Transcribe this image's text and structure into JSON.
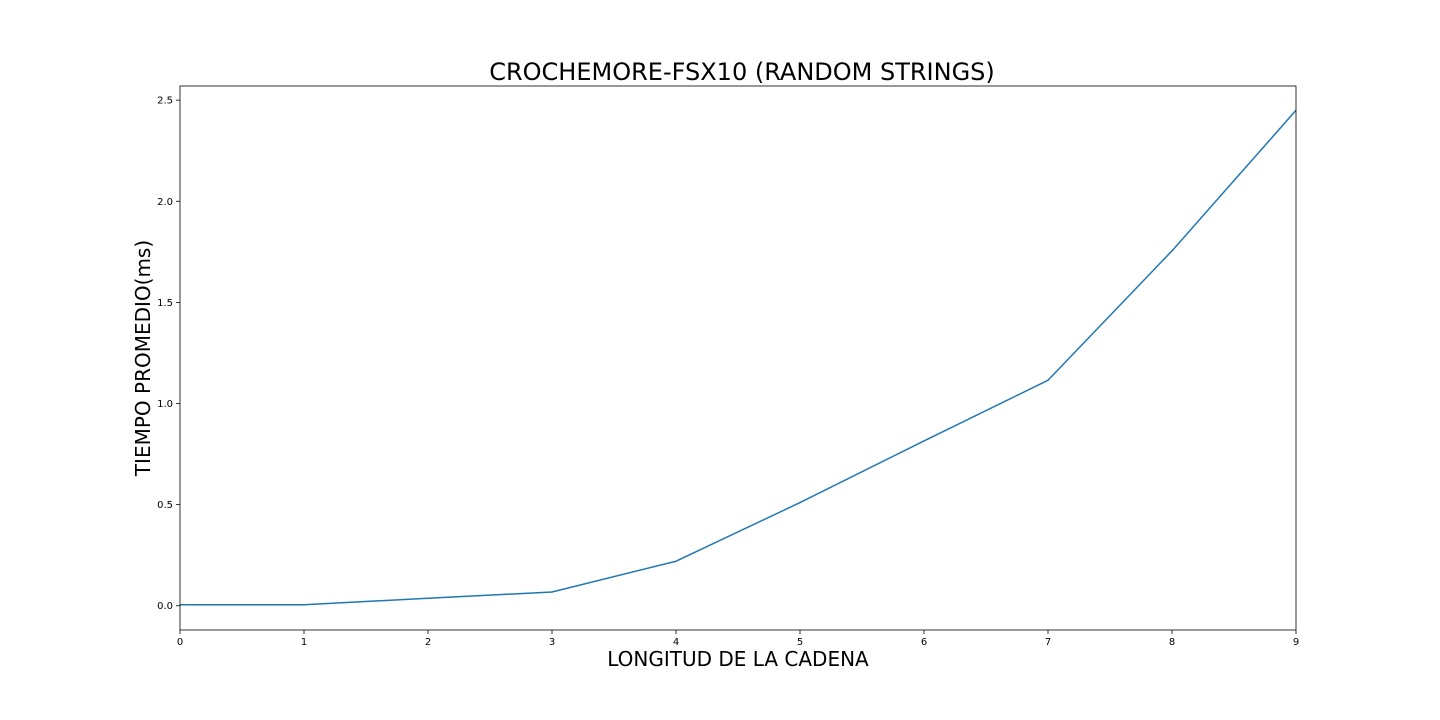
{
  "chart_data": {
    "type": "line",
    "title": "CROCHEMORE-FSX10 (RANDOM STRINGS)",
    "xlabel": "LONGITUD DE LA CADENA",
    "ylabel": "TIEMPO PROMEDIO(ms)",
    "xlim": [
      0,
      9
    ],
    "ylim": [
      -0.12,
      2.57
    ],
    "xticks": [
      0,
      1,
      2,
      3,
      4,
      5,
      6,
      7,
      8,
      9
    ],
    "xtick_labels": [
      "0",
      "1",
      "2",
      "3",
      "4",
      "5",
      "6",
      "7",
      "8",
      "9"
    ],
    "yticks": [
      0.0,
      0.5,
      1.0,
      1.5,
      2.0,
      2.5
    ],
    "ytick_labels": [
      "0.0",
      "0.5",
      "1.0",
      "1.5",
      "2.0",
      "2.5"
    ],
    "grid": false,
    "series": [
      {
        "color": "#1f77b4",
        "x": [
          0,
          1,
          2,
          3,
          4,
          5,
          6,
          7,
          8,
          9
        ],
        "y": [
          0.005,
          0.005,
          0.037,
          0.068,
          0.22,
          0.51,
          0.815,
          1.115,
          1.755,
          2.45
        ]
      }
    ]
  }
}
